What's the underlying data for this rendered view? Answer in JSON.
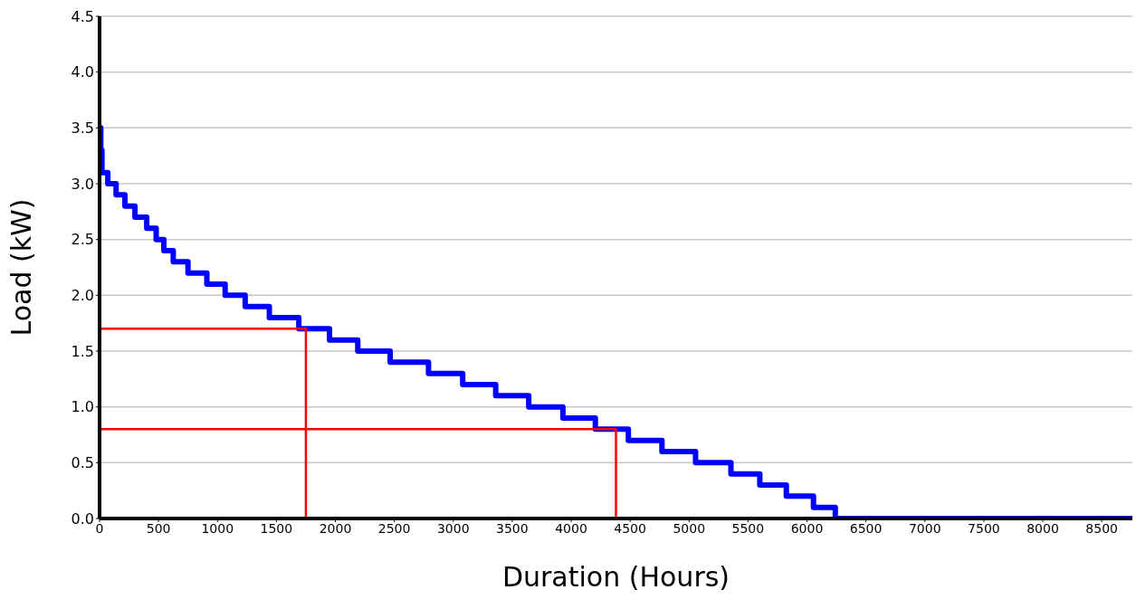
{
  "chart_data": {
    "type": "step",
    "xlabel": "Duration (Hours)",
    "ylabel": "Load (kW)",
    "xlim": [
      0,
      8760
    ],
    "xticks": [
      0,
      500,
      1000,
      1500,
      2000,
      2500,
      3000,
      3500,
      4000,
      4500,
      5000,
      5500,
      6000,
      6500,
      7000,
      7500,
      8000,
      8500
    ],
    "ylim": [
      0,
      4.5
    ],
    "yticks": [
      {
        "value": 0,
        "label": "0.0"
      },
      0.5,
      {
        "value": 1,
        "label": "1.0"
      },
      1.5,
      {
        "value": 2,
        "label": "2.0"
      },
      2.5,
      {
        "value": 3,
        "label": "3.0"
      },
      3.5,
      {
        "value": 4,
        "label": "4.0"
      },
      4.5
    ],
    "grid": "y",
    "marker": "none",
    "line_style": "solid",
    "series": [
      {
        "color": "#0000ff",
        "x": [
          0,
          10,
          20,
          70,
          140,
          215,
          300,
          400,
          480,
          545,
          625,
          750,
          910,
          1065,
          1235,
          1440,
          1690,
          1950,
          2190,
          2465,
          2790,
          3080,
          3360,
          3640,
          3930,
          4205,
          4485,
          4770,
          5055,
          5355,
          5600,
          5825,
          6055,
          6240,
          8760
        ],
        "values": [
          3.5,
          3.3,
          3.1,
          3.0,
          2.9,
          2.8,
          2.7,
          2.6,
          2.5,
          2.4,
          2.3,
          2.2,
          2.1,
          2.0,
          1.9,
          1.8,
          1.7,
          1.6,
          1.5,
          1.4,
          1.3,
          1.2,
          1.1,
          1.0,
          0.9,
          0.8,
          0.7,
          0.6,
          0.5,
          0.4,
          0.3,
          0.2,
          0.1,
          0,
          0
        ]
      },
      {
        "type": "line",
        "color": "#ff0000",
        "x": [
          0,
          1750,
          1750
        ],
        "values": [
          1.7,
          1.7,
          0
        ]
      },
      {
        "type": "line",
        "color": "#ff0000",
        "x": [
          0,
          4380,
          4380
        ],
        "values": [
          0.8,
          0.8,
          0
        ]
      }
    ]
  }
}
